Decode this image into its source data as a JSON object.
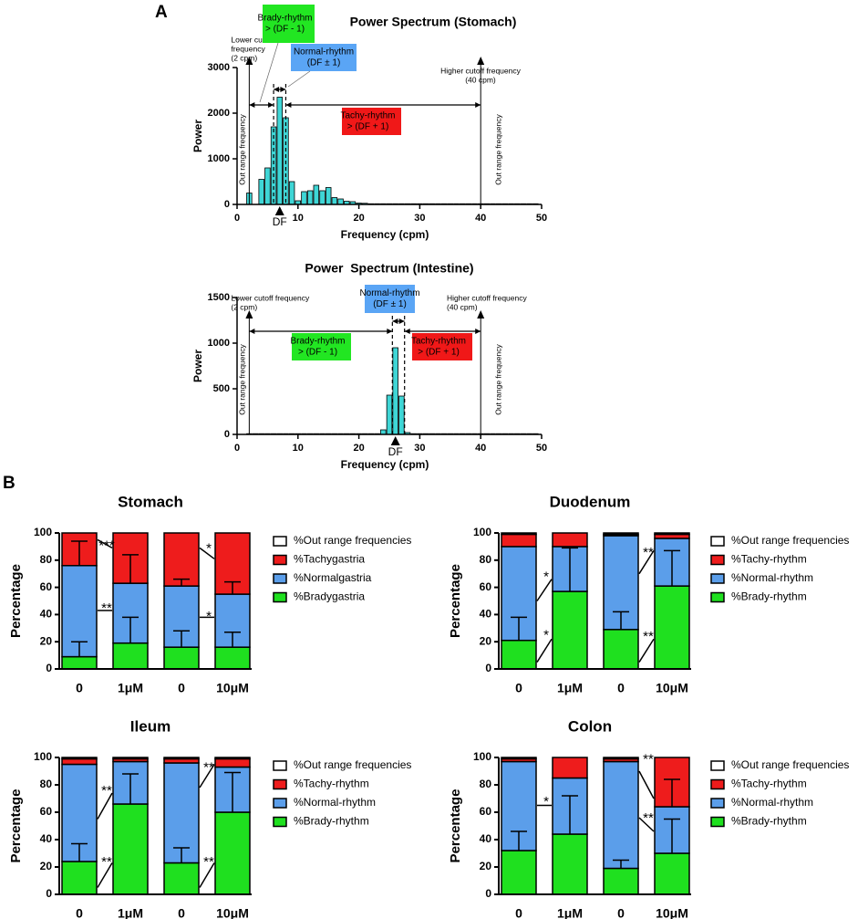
{
  "panel_labels": [
    "A",
    "B"
  ],
  "chart_data": [
    {
      "type": "spectrum",
      "title": "Power Spectrum (Stomach)",
      "xlabel": "Frequency (cpm)",
      "ylabel": "Power",
      "x": [
        2,
        3,
        4,
        5,
        6,
        7,
        8,
        9,
        10,
        11,
        12,
        13,
        14,
        15,
        16,
        17,
        18,
        19,
        20,
        21,
        22,
        23,
        24,
        25,
        26,
        27,
        28,
        29,
        30,
        31,
        32,
        33,
        34,
        35,
        36,
        37,
        38,
        39,
        40,
        41,
        42,
        43,
        44,
        45,
        46,
        47,
        48,
        49
      ],
      "values": [
        250,
        0,
        550,
        800,
        1700,
        2350,
        1900,
        500,
        80,
        280,
        300,
        420,
        300,
        370,
        150,
        120,
        70,
        60,
        30,
        25,
        15,
        15,
        15,
        15,
        15,
        15,
        15,
        15,
        15,
        15,
        15,
        15,
        15,
        15,
        15,
        15,
        15,
        15,
        15,
        15,
        15,
        15,
        15,
        15,
        15,
        15,
        15,
        15
      ],
      "color": "#3fd6d6",
      "xlim": [
        0,
        50
      ],
      "xticks": [
        0,
        10,
        20,
        30,
        40,
        50
      ],
      "ylim": [
        0,
        3000
      ],
      "yticks": [
        0,
        1000,
        2000,
        3000
      ],
      "cutoffs": [
        2,
        40
      ],
      "normal_band": [
        6,
        8
      ],
      "df": 7,
      "df_label": "DF",
      "lower_cutoff_text": [
        "Lower cutoff",
        "frequency",
        "(2 cpm)"
      ],
      "higher_cutoff_text": [
        "Higher cutoff frequency",
        "(40 cpm)"
      ],
      "out_range_text": [
        "Out range frequency",
        "Out range frequency"
      ],
      "brady_box": [
        "Brady-rhythm",
        "> (DF - 1)"
      ],
      "normal_box": [
        "Normal-rhythm",
        "(DF ± 1)"
      ],
      "tachy_box": [
        "Tachy-rhythm",
        "> (DF + 1)"
      ]
    },
    {
      "type": "spectrum",
      "title": "Power  Spectrum (Intestine)",
      "xlabel": "Frequency (cpm)",
      "ylabel": "Power",
      "x": [
        2,
        3,
        4,
        5,
        6,
        7,
        8,
        9,
        10,
        11,
        12,
        13,
        14,
        15,
        16,
        17,
        18,
        19,
        20,
        21,
        22,
        23,
        24,
        25,
        26,
        27,
        28,
        29,
        30,
        31,
        32,
        33,
        34,
        35,
        36,
        37,
        38,
        39,
        40,
        41,
        42,
        43,
        44,
        45,
        46,
        47,
        48,
        49
      ],
      "values": [
        8,
        8,
        8,
        8,
        8,
        8,
        8,
        8,
        8,
        8,
        8,
        8,
        8,
        8,
        8,
        8,
        8,
        8,
        8,
        8,
        8,
        8,
        50,
        430,
        950,
        420,
        20,
        8,
        8,
        8,
        8,
        8,
        8,
        8,
        8,
        8,
        8,
        8,
        8,
        8,
        8,
        8,
        8,
        8,
        8,
        8,
        8,
        8
      ],
      "color": "#3fd6d6",
      "xlim": [
        0,
        50
      ],
      "xticks": [
        0,
        10,
        20,
        30,
        40,
        50
      ],
      "ylim": [
        0,
        1500
      ],
      "yticks": [
        0,
        500,
        1000,
        1500
      ],
      "cutoffs": [
        2,
        40
      ],
      "normal_band": [
        25.5,
        27.5
      ],
      "df": 26,
      "df_label": "DF",
      "lower_cutoff_text": [
        "Lower cutoff frequency",
        "(2 cpm)"
      ],
      "higher_cutoff_text": [
        "Higher cutoff frequency",
        "(40 cpm)"
      ],
      "out_range_text": [
        "Out range frequency",
        "Out range frequency"
      ],
      "brady_box": [
        "Brady-rhythm",
        "> (DF - 1)"
      ],
      "normal_box": [
        "Normal-rhythm",
        "(DF ± 1)"
      ],
      "tachy_box": [
        "Tachy-rhythm",
        "> (DF + 1)"
      ]
    },
    {
      "type": "stacked_bar",
      "title": "Stomach",
      "ylabel": "Percentage",
      "categories": [
        "0",
        "1μM",
        "0",
        "10μM"
      ],
      "ylim": [
        0,
        100
      ],
      "yticks": [
        0,
        20,
        40,
        60,
        80,
        100
      ],
      "series": [
        {
          "name": "%Bradygastria",
          "color": "#1fe01f",
          "values": [
            9,
            19,
            16,
            16
          ],
          "errors": [
            11,
            19,
            12,
            11
          ]
        },
        {
          "name": "%Normalgastria",
          "color": "#5b9eea",
          "values": [
            67,
            44,
            45,
            39
          ],
          "errors": [
            18,
            21,
            5,
            9
          ]
        },
        {
          "name": "%Tachygastria",
          "color": "#ee1c1c",
          "values": [
            24,
            37,
            39,
            45
          ],
          "errors": [
            null,
            null,
            null,
            null
          ]
        },
        {
          "name": "%Out range frequencies",
          "color": "#ffffff",
          "values": [
            0,
            0,
            0,
            0
          ],
          "errors": [
            null,
            null,
            null,
            null
          ]
        }
      ],
      "significance": [
        "***",
        "**",
        "*",
        "*"
      ]
    },
    {
      "type": "stacked_bar",
      "title": "Duodenum",
      "ylabel": "Percentage",
      "categories": [
        "0",
        "1μM",
        "0",
        "10μM"
      ],
      "ylim": [
        0,
        100
      ],
      "yticks": [
        0,
        20,
        40,
        60,
        80,
        100
      ],
      "series": [
        {
          "name": "%Brady-rhythm",
          "color": "#1fe01f",
          "values": [
            21,
            57,
            29,
            61
          ],
          "errors": [
            17,
            32,
            13,
            26
          ]
        },
        {
          "name": "%Normal-rhythm",
          "color": "#5b9eea",
          "values": [
            69,
            33,
            69,
            35
          ],
          "errors": [
            null,
            null,
            null,
            null
          ]
        },
        {
          "name": "%Tachy-rhythm",
          "color": "#ee1c1c",
          "values": [
            9,
            10,
            1,
            3
          ],
          "errors": [
            null,
            null,
            null,
            null
          ]
        },
        {
          "name": "%Out range frequencies",
          "color": "#ffffff",
          "values": [
            1,
            0,
            1,
            1
          ],
          "errors": [
            null,
            null,
            null,
            null
          ]
        }
      ],
      "significance": [
        "*",
        "*",
        "**",
        "**"
      ]
    },
    {
      "type": "stacked_bar",
      "title": "Ileum",
      "ylabel": "Percentage",
      "categories": [
        "0",
        "1μM",
        "0",
        "10μM"
      ],
      "ylim": [
        0,
        100
      ],
      "yticks": [
        0,
        20,
        40,
        60,
        80,
        100
      ],
      "series": [
        {
          "name": "%Brady-rhythm",
          "color": "#1fe01f",
          "values": [
            24,
            66,
            23,
            60
          ],
          "errors": [
            13,
            22,
            11,
            29
          ]
        },
        {
          "name": "%Normal-rhythm",
          "color": "#5b9eea",
          "values": [
            71,
            31,
            73,
            33
          ],
          "errors": [
            null,
            null,
            null,
            null
          ]
        },
        {
          "name": "%Tachy-rhythm",
          "color": "#ee1c1c",
          "values": [
            4,
            2,
            3,
            6
          ],
          "errors": [
            null,
            null,
            null,
            null
          ]
        },
        {
          "name": "%Out range frequencies",
          "color": "#ffffff",
          "values": [
            1,
            1,
            1,
            1
          ],
          "errors": [
            null,
            null,
            null,
            null
          ]
        }
      ],
      "significance": [
        "**",
        "**",
        "**",
        "**"
      ]
    },
    {
      "type": "stacked_bar",
      "title": "Colon",
      "ylabel": "Percentage",
      "categories": [
        "0",
        "1μM",
        "0",
        "10μM"
      ],
      "ylim": [
        0,
        100
      ],
      "yticks": [
        0,
        20,
        40,
        60,
        80,
        100
      ],
      "series": [
        {
          "name": "%Brady-rhythm",
          "color": "#1fe01f",
          "values": [
            32,
            44,
            19,
            30
          ],
          "errors": [
            14,
            28,
            6,
            25
          ]
        },
        {
          "name": "%Normal-rhythm",
          "color": "#5b9eea",
          "values": [
            65,
            41,
            78,
            34
          ],
          "errors": [
            null,
            null,
            null,
            20
          ]
        },
        {
          "name": "%Tachy-rhythm",
          "color": "#ee1c1c",
          "values": [
            2,
            15,
            2,
            36
          ],
          "errors": [
            null,
            null,
            null,
            null
          ]
        },
        {
          "name": "%Out range frequencies",
          "color": "#ffffff",
          "values": [
            1,
            0,
            1,
            0
          ],
          "errors": [
            null,
            null,
            null,
            null
          ]
        }
      ],
      "significance": [
        "*",
        "**",
        "**"
      ]
    }
  ]
}
